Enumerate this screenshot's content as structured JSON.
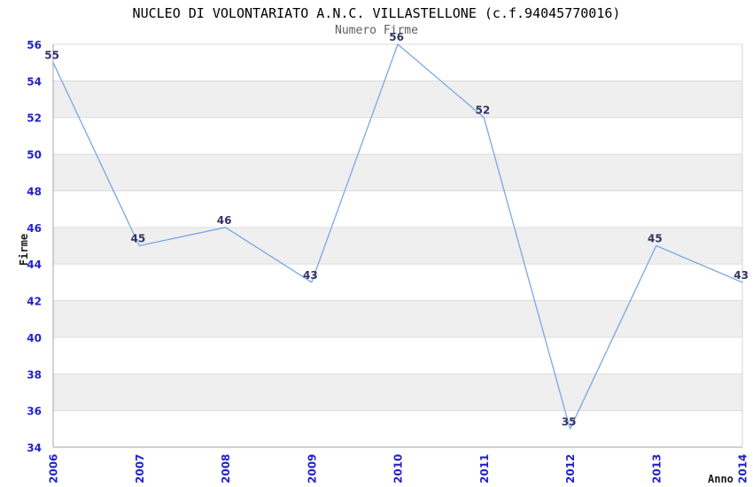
{
  "header": {
    "title": "NUCLEO DI VOLONTARIATO A.N.C. VILLASTELLONE (c.f.94045770016)",
    "subtitle": "Numero Firme"
  },
  "axes": {
    "y_title": "Firme",
    "x_title": "Anno"
  },
  "colors": {
    "line": "#79a8e3",
    "tick_label": "#2222cc",
    "data_label": "#333366",
    "band_gray": "#efefef",
    "gridline": "#dcdcdc",
    "axis_line": "#a6a6a6",
    "plot_border": "#d4d4d4",
    "title": "#000000",
    "subtitle": "#5f5f5f"
  },
  "chart_data": {
    "type": "line",
    "title": "NUCLEO DI VOLONTARIATO A.N.C. VILLASTELLONE (c.f.94045770016)",
    "subtitle": "Numero Firme",
    "xlabel": "Anno",
    "ylabel": "Firme",
    "categories": [
      "2006",
      "2007",
      "2008",
      "2009",
      "2010",
      "2011",
      "2012",
      "2013",
      "2014"
    ],
    "series": [
      {
        "name": "Numero Firme",
        "values": [
          55,
          45,
          46,
          43,
          56,
          52,
          35,
          45,
          43
        ]
      }
    ],
    "ylim": [
      34,
      56
    ],
    "ytick_step": 2,
    "yticks": [
      34,
      36,
      38,
      40,
      42,
      44,
      46,
      48,
      50,
      52,
      54,
      56
    ],
    "grid": true,
    "alternating_bands": true,
    "legend_position": "none",
    "data_labels_shown": true
  }
}
